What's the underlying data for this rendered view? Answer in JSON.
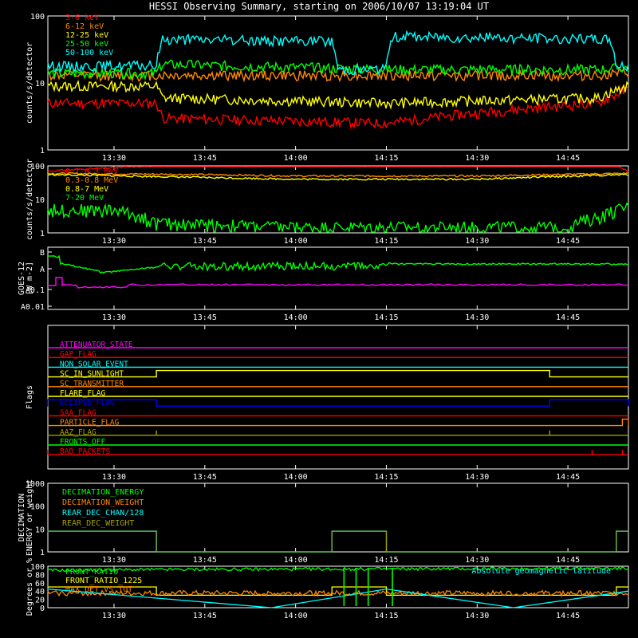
{
  "title": "HESSI Observing Summary, starting on 2006/10/07 13:19:04 UT",
  "x_ticks": [
    "13:30",
    "13:45",
    "14:00",
    "14:15",
    "14:30",
    "14:45"
  ],
  "colors": {
    "background": "#000000",
    "axis": "#ffffff",
    "red": "#ff0000",
    "orange": "#ff8800",
    "yellow": "#ffff00",
    "green": "#00ff00",
    "cyan": "#00ffff",
    "magenta": "#ff00ff",
    "blue": "#0000ff",
    "olive": "#a0a000"
  },
  "chart_data": [
    {
      "type": "line",
      "panel": "hxr-low",
      "ylabel": "counts/s/detector",
      "y_scale": "log",
      "ylim": [
        1,
        100
      ],
      "y_ticks": [
        "1",
        "10",
        "100"
      ],
      "time_range": [
        "13:19:04",
        "14:55"
      ],
      "legend": "top-left",
      "series": [
        {
          "name": "3-6 keV",
          "color": "#ff0000",
          "x": [
            "13:19",
            "13:37",
            "13:38",
            "14:15",
            "14:50",
            "14:55"
          ],
          "values": [
            5,
            5,
            3,
            2.5,
            5,
            8
          ]
        },
        {
          "name": "6-12 keV",
          "color": "#ff8800",
          "x": [
            "13:19",
            "13:37",
            "13:38",
            "14:15",
            "14:50",
            "14:55"
          ],
          "values": [
            13,
            13,
            13,
            13,
            13,
            14
          ]
        },
        {
          "name": "12-25 keV",
          "color": "#ffff00",
          "x": [
            "13:19",
            "13:37",
            "13:38",
            "14:15",
            "14:50",
            "14:55"
          ],
          "values": [
            9,
            9,
            6,
            5,
            6,
            9
          ]
        },
        {
          "name": "25-50 keV",
          "color": "#00ff00",
          "x": [
            "13:19",
            "13:37",
            "13:38",
            "14:15",
            "14:50",
            "14:55"
          ],
          "values": [
            14,
            14,
            19,
            16,
            16,
            17
          ]
        },
        {
          "name": "50-100 keV",
          "color": "#00ffff",
          "x": [
            "13:19",
            "13:37",
            "13:38",
            "14:06",
            "14:07",
            "14:15",
            "14:16",
            "14:52",
            "14:53",
            "14:55"
          ],
          "values": [
            18,
            18,
            45,
            42,
            16,
            16,
            50,
            45,
            18,
            18
          ]
        }
      ]
    },
    {
      "type": "line",
      "panel": "hxr-high",
      "ylabel": "counts/s/detector",
      "y_scale": "log",
      "ylim": [
        1,
        100
      ],
      "y_ticks": [
        "1",
        "10",
        "100"
      ],
      "legend": "top-left",
      "series": [
        {
          "name": "0.1-0.3 MeV",
          "color": "#ff0000",
          "x": [
            "13:19",
            "13:37",
            "14:06",
            "14:15",
            "14:53",
            "14:55"
          ],
          "values": [
            70,
            100,
            100,
            100,
            100,
            70
          ]
        },
        {
          "name": "0.3-0.8 MeV",
          "color": "#ff8800",
          "x": [
            "13:19",
            "13:45",
            "14:00",
            "14:30",
            "14:55"
          ],
          "values": [
            60,
            55,
            50,
            50,
            60
          ]
        },
        {
          "name": "0.8-7 MeV",
          "color": "#ffff00",
          "x": [
            "13:19",
            "13:45",
            "14:00",
            "14:30",
            "14:55"
          ],
          "values": [
            55,
            45,
            40,
            40,
            55
          ]
        },
        {
          "name": "7-20 MeV",
          "color": "#00ff00",
          "x": [
            "13:19",
            "13:30",
            "13:37",
            "14:00",
            "14:45",
            "14:50",
            "14:55"
          ],
          "values": [
            5,
            5,
            2,
            1.5,
            1.5,
            3,
            6
          ]
        }
      ]
    },
    {
      "type": "line",
      "panel": "goes",
      "ylabel": "GOES-12 [W m-2]",
      "y_ticks": [
        "B",
        "A",
        "A0.1",
        "A0.01"
      ],
      "series": [
        {
          "color": "#00ff00",
          "x": [
            "13:19",
            "13:30",
            "13:45",
            "14:15",
            "14:55"
          ],
          "level": [
            "A+",
            "A-",
            "A",
            "A+",
            "A+"
          ]
        },
        {
          "color": "#ff00ff",
          "x": [
            "13:19",
            "13:30",
            "14:55"
          ],
          "level": [
            "A0.1+",
            "A0.1",
            "A0.1+"
          ]
        }
      ]
    },
    {
      "type": "table",
      "panel": "flags",
      "ylabel": "Flags",
      "flags": [
        {
          "name": "ATTENUATOR_STATE",
          "color": "#ff00ff"
        },
        {
          "name": "GAP_FLAG",
          "color": "#ff0000"
        },
        {
          "name": "NON_SOLAR_EVENT",
          "color": "#00ffff"
        },
        {
          "name": "SC_IN_SUNLIGHT",
          "color": "#ffff00",
          "high": [
            [
              "13:37",
              "14:42"
            ]
          ]
        },
        {
          "name": "SC_TRANSMITTER",
          "color": "#ff8800"
        },
        {
          "name": "FLARE_FLAG",
          "color": "#ffff00"
        },
        {
          "name": "ECLIPSE_FLAG",
          "color": "#0000ff",
          "high": [
            [
              "13:19",
              "13:37"
            ],
            [
              "14:42",
              "14:55"
            ]
          ]
        },
        {
          "name": "SAA_FLAG",
          "color": "#ff0000"
        },
        {
          "name": "PARTICLE_FLAG",
          "color": "#ff8800",
          "high": [
            [
              "14:54",
              "14:55"
            ]
          ]
        },
        {
          "name": "AAZ_FLAG",
          "color": "#a0a000",
          "spikes": [
            "13:37",
            "14:42"
          ]
        },
        {
          "name": "FRONTS_OFF",
          "color": "#00ff00"
        },
        {
          "name": "BAD_PACKETS",
          "color": "#ff0000",
          "spikes": [
            "13:19",
            "14:49",
            "14:54"
          ]
        }
      ]
    },
    {
      "type": "line",
      "panel": "decimation",
      "ylabel": "DECIMATION ENERGY or weight",
      "y_scale": "log",
      "ylim": [
        1,
        1000
      ],
      "y_ticks": [
        "1",
        "10",
        "100",
        "1000"
      ],
      "legend": "top-left",
      "series": [
        {
          "name": "DECIMATION_ENERGY",
          "color": "#00ff00"
        },
        {
          "name": "DECIMATION_WEIGHT",
          "color": "#ff8800"
        },
        {
          "name": "REAR_DEC_CHAN/128",
          "color": "#00ffff",
          "x": [
            "13:19",
            "13:37",
            "14:06",
            "14:15",
            "14:53",
            "14:55"
          ],
          "values": [
            8,
            1,
            8,
            1,
            8,
            8
          ]
        },
        {
          "name": "REAR_DEC_WEIGHT",
          "color": "#a0a000",
          "x": [
            "13:19",
            "13:37",
            "14:06",
            "14:15",
            "14:53",
            "14:55"
          ],
          "values": [
            8,
            1,
            8,
            1,
            8,
            8
          ]
        }
      ]
    },
    {
      "type": "line",
      "panel": "ratios",
      "ylabel": "Degrees or %",
      "ylim": [
        0,
        100
      ],
      "y_ticks": [
        "0",
        "20",
        "40",
        "60",
        "80",
        "100"
      ],
      "annotation": "Absolute geomagnetic latitude",
      "legend": "top-left",
      "series": [
        {
          "name": "FRONT_RATIO",
          "color": "#00ff00",
          "x": [
            "13:19",
            "13:37",
            "14:55"
          ],
          "values": [
            90,
            92,
            95
          ]
        },
        {
          "name": "FRONT_RATIO_1225",
          "color": "#ffff00",
          "x": [
            "13:19",
            "13:37",
            "14:06",
            "14:15",
            "14:53",
            "14:55"
          ],
          "values": [
            50,
            30,
            50,
            30,
            50,
            50
          ]
        },
        {
          "name": "MAX_DET_VS_TOT",
          "color": "#ff8800",
          "x": [
            "13:19",
            "14:55"
          ],
          "values": [
            35,
            35
          ]
        },
        {
          "name": "",
          "color": "#00ffff",
          "x": [
            "13:19",
            "13:56",
            "14:15",
            "14:36",
            "14:55"
          ],
          "values": [
            45,
            0,
            45,
            0,
            40
          ]
        }
      ]
    }
  ]
}
